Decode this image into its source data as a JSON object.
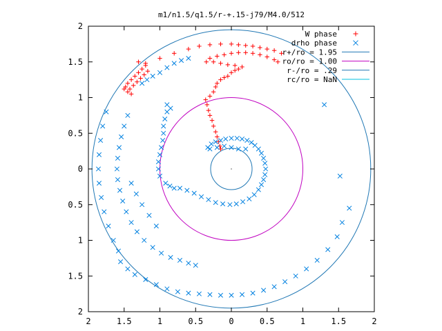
{
  "chart_data": {
    "type": "scatter",
    "title": "m1/n1.5/q1.5/r-+.15-j79/M4.0/512",
    "xlabel": "",
    "ylabel": "",
    "xlim": [
      -2,
      2
    ],
    "ylim": [
      -2,
      2
    ],
    "x_tick_values": [
      -2,
      -1.5,
      -1,
      -0.5,
      0,
      0.5,
      1,
      1.5,
      2
    ],
    "x_tick_labels": [
      "2",
      "1.5",
      "1",
      "0.5",
      "0",
      "0.5",
      "1",
      "1.5",
      "2"
    ],
    "y_tick_values": [
      2,
      1.5,
      1,
      0.5,
      0,
      -0.5,
      -1,
      -1.5,
      -2
    ],
    "y_tick_labels": [
      "2",
      "1.5",
      "1",
      "0.5",
      "0",
      "0.5",
      "1",
      "1.5",
      "2"
    ],
    "grid": false,
    "legend_position": "top-right",
    "colors": {
      "w_phase": "#ff0000",
      "drho_phase": "#0080e0",
      "r_plus": "#1f77b4",
      "r_o": "#c000c0",
      "r_minus": "#1f77b4",
      "r_c": "#00c0e0"
    },
    "series": [
      {
        "name": "W phase",
        "marker": "plus",
        "points": [
          [
            -0.15,
            0.28
          ],
          [
            -0.16,
            0.32
          ],
          [
            -0.18,
            0.38
          ],
          [
            -0.2,
            0.45
          ],
          [
            -0.22,
            0.52
          ],
          [
            -0.25,
            0.6
          ],
          [
            -0.27,
            0.68
          ],
          [
            -0.3,
            0.75
          ],
          [
            -0.32,
            0.82
          ],
          [
            -0.34,
            0.9
          ],
          [
            -0.36,
            0.97
          ],
          [
            -0.3,
            1.02
          ],
          [
            -0.25,
            1.08
          ],
          [
            -0.22,
            1.15
          ],
          [
            -0.2,
            1.2
          ],
          [
            -0.15,
            1.25
          ],
          [
            -0.1,
            1.28
          ],
          [
            -0.05,
            1.3
          ],
          [
            0,
            1.35
          ],
          [
            0.05,
            1.38
          ],
          [
            0.1,
            1.4
          ],
          [
            0.15,
            1.43
          ],
          [
            0.05,
            1.45
          ],
          [
            -0.05,
            1.46
          ],
          [
            -0.15,
            1.48
          ],
          [
            -0.25,
            1.5
          ],
          [
            -0.35,
            1.5
          ],
          [
            -0.3,
            1.55
          ],
          [
            -0.2,
            1.58
          ],
          [
            -0.1,
            1.6
          ],
          [
            0,
            1.62
          ],
          [
            0.1,
            1.63
          ],
          [
            0.2,
            1.63
          ],
          [
            0.3,
            1.62
          ],
          [
            0.4,
            1.6
          ],
          [
            0.5,
            1.57
          ],
          [
            0.6,
            1.53
          ],
          [
            0.65,
            1.5
          ],
          [
            0.7,
            1.62
          ],
          [
            0.6,
            1.66
          ],
          [
            0.5,
            1.68
          ],
          [
            0.4,
            1.7
          ],
          [
            0.3,
            1.72
          ],
          [
            0.2,
            1.73
          ],
          [
            0.1,
            1.74
          ],
          [
            0,
            1.75
          ],
          [
            -0.15,
            1.75
          ],
          [
            -0.3,
            1.74
          ],
          [
            -0.45,
            1.72
          ],
          [
            -0.6,
            1.68
          ],
          [
            -0.8,
            1.62
          ],
          [
            -1,
            1.55
          ],
          [
            -1.2,
            1.48
          ],
          [
            -1.3,
            1.5
          ],
          [
            -1.45,
            1.2
          ],
          [
            -1.4,
            1.25
          ],
          [
            -1.35,
            1.3
          ],
          [
            -1.3,
            1.35
          ],
          [
            -1.25,
            1.4
          ],
          [
            -1.2,
            1.45
          ],
          [
            -1.48,
            1.15
          ],
          [
            -1.42,
            1.12
          ],
          [
            -1.37,
            1.17
          ],
          [
            -1.32,
            1.22
          ],
          [
            -1.27,
            1.27
          ],
          [
            -1.22,
            1.32
          ],
          [
            -1.17,
            1.37
          ],
          [
            -1.45,
            1.08
          ],
          [
            -1.4,
            1.05
          ],
          [
            -1.5,
            1.12
          ]
        ]
      },
      {
        "name": "drho phase",
        "marker": "cross",
        "points": [
          [
            -0.33,
            0.3
          ],
          [
            -0.28,
            0.35
          ],
          [
            -0.22,
            0.38
          ],
          [
            -0.15,
            0.4
          ],
          [
            -0.08,
            0.42
          ],
          [
            0,
            0.43
          ],
          [
            0.08,
            0.43
          ],
          [
            0.15,
            0.42
          ],
          [
            0.22,
            0.4
          ],
          [
            0.28,
            0.37
          ],
          [
            0.33,
            0.33
          ],
          [
            0.38,
            0.28
          ],
          [
            0.42,
            0.22
          ],
          [
            0.45,
            0.15
          ],
          [
            0.47,
            0.08
          ],
          [
            0.48,
            0
          ],
          [
            0.47,
            -0.08
          ],
          [
            0.45,
            -0.15
          ],
          [
            0.42,
            -0.22
          ],
          [
            0.38,
            -0.29
          ],
          [
            0.32,
            -0.36
          ],
          [
            0.25,
            -0.42
          ],
          [
            0.16,
            -0.46
          ],
          [
            0.07,
            -0.49
          ],
          [
            -0.02,
            -0.5
          ],
          [
            -0.12,
            -0.49
          ],
          [
            -0.22,
            -0.47
          ],
          [
            -0.32,
            -0.43
          ],
          [
            -0.42,
            -0.39
          ],
          [
            -0.52,
            -0.34
          ],
          [
            -0.62,
            -0.3
          ],
          [
            -0.72,
            -0.27
          ],
          [
            -0.8,
            -0.27
          ],
          [
            -0.86,
            -0.24
          ],
          [
            -0.92,
            -0.2
          ],
          [
            -1.0,
            -0.1
          ],
          [
            -1.02,
            0
          ],
          [
            -1.02,
            0.1
          ],
          [
            -1.0,
            0.2
          ],
          [
            -0.98,
            0.3
          ],
          [
            -0.96,
            0.4
          ],
          [
            -0.95,
            0.5
          ],
          [
            -0.95,
            0.6
          ],
          [
            -0.93,
            0.7
          ],
          [
            -0.9,
            0.8
          ],
          [
            -0.85,
            0.85
          ],
          [
            -0.9,
            0.9
          ],
          [
            -0.3,
            0.28
          ],
          [
            -0.2,
            0.3
          ],
          [
            -0.1,
            0.32
          ],
          [
            0,
            0.3
          ],
          [
            0.1,
            0.28
          ],
          [
            0.2,
            0.28
          ],
          [
            -1.45,
            0.75
          ],
          [
            -1.5,
            0.6
          ],
          [
            -1.54,
            0.45
          ],
          [
            -1.57,
            0.3
          ],
          [
            -1.59,
            0.15
          ],
          [
            -1.6,
            0
          ],
          [
            -1.59,
            -0.15
          ],
          [
            -1.56,
            -0.3
          ],
          [
            -1.52,
            -0.45
          ],
          [
            -1.47,
            -0.6
          ],
          [
            -1.4,
            -0.75
          ],
          [
            -1.32,
            -0.88
          ],
          [
            -1.22,
            -1.0
          ],
          [
            -1.1,
            -1.1
          ],
          [
            -0.98,
            -1.18
          ],
          [
            -0.85,
            -1.24
          ],
          [
            -0.72,
            -1.28
          ],
          [
            -0.6,
            -1.32
          ],
          [
            -0.5,
            -1.35
          ],
          [
            -1.25,
            1.2
          ],
          [
            -1.18,
            1.25
          ],
          [
            -1.1,
            1.3
          ],
          [
            -1.0,
            1.35
          ],
          [
            -0.9,
            1.42
          ],
          [
            -0.8,
            1.48
          ],
          [
            -0.7,
            1.52
          ],
          [
            -0.6,
            1.55
          ],
          [
            -1.4,
            -0.2
          ],
          [
            -1.33,
            -0.35
          ],
          [
            -1.25,
            -0.5
          ],
          [
            -1.15,
            -0.65
          ],
          [
            -1.05,
            -0.8
          ],
          [
            -1.55,
            -1.3
          ],
          [
            -1.45,
            -1.4
          ],
          [
            -1.35,
            -1.48
          ],
          [
            -1.2,
            -1.55
          ],
          [
            -1.05,
            -1.62
          ],
          [
            -0.9,
            -1.68
          ],
          [
            -0.75,
            -1.72
          ],
          [
            -0.6,
            -1.74
          ],
          [
            -0.45,
            -1.75
          ],
          [
            -0.3,
            -1.76
          ],
          [
            -0.15,
            -1.77
          ],
          [
            0,
            -1.77
          ],
          [
            0.15,
            -1.76
          ],
          [
            0.3,
            -1.74
          ],
          [
            0.45,
            -1.7
          ],
          [
            0.6,
            -1.65
          ],
          [
            0.75,
            -1.58
          ],
          [
            0.9,
            -1.5
          ],
          [
            1.05,
            -1.4
          ],
          [
            1.2,
            -1.28
          ],
          [
            1.35,
            -1.13
          ],
          [
            1.48,
            -0.95
          ],
          [
            1.55,
            -0.75
          ],
          [
            1.65,
            -0.55
          ],
          [
            -1.75,
            0.8
          ],
          [
            -1.8,
            0.6
          ],
          [
            -1.83,
            0.4
          ],
          [
            -1.85,
            0.2
          ],
          [
            -1.86,
            0
          ],
          [
            -1.85,
            -0.2
          ],
          [
            -1.82,
            -0.4
          ],
          [
            -1.78,
            -0.6
          ],
          [
            -1.72,
            -0.8
          ],
          [
            -1.65,
            -1.0
          ],
          [
            -1.58,
            -1.15
          ],
          [
            1.3,
            0.9
          ],
          [
            1.52,
            -0.1
          ]
        ]
      }
    ],
    "circles": [
      {
        "name": "r+/ro = 1.95",
        "radius": 1.95
      },
      {
        "name": "ro/ro = 1.00",
        "radius": 1.0
      },
      {
        "name": "r-/ro = .29",
        "radius": 0.29
      },
      {
        "name": "rc/ro = NaN",
        "radius": null
      }
    ]
  }
}
